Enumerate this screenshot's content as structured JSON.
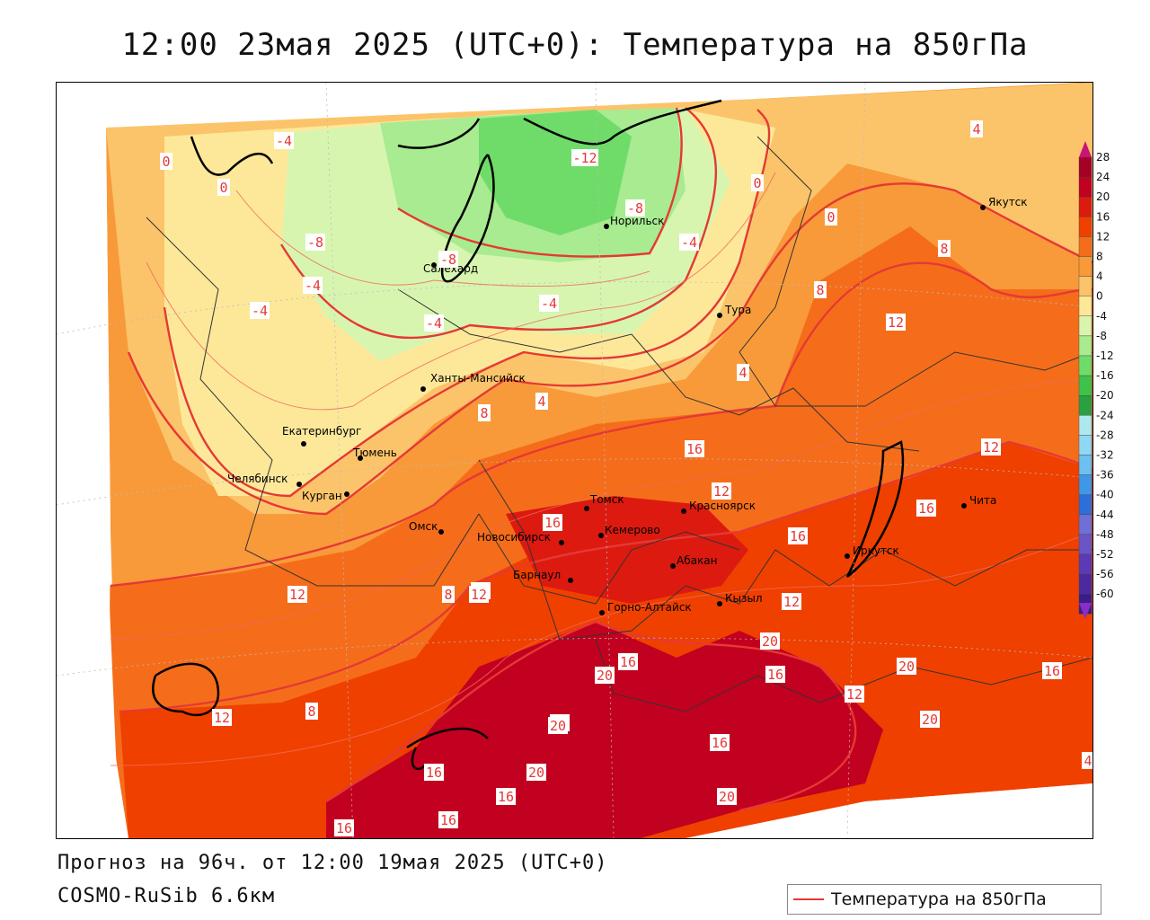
{
  "title": "12:00 23мая 2025 (UTC+0): Температура на 850гПа",
  "forecast_text": "Прогноз на 96ч. от 12:00 19мая 2025 (UTC+0)",
  "model_text": "COSMO-RuSib 6.6км",
  "legend": {
    "label": "Температура на 850гПа",
    "line_color": "#e53935"
  },
  "colorbar": {
    "levels": [
      "28",
      "24",
      "20",
      "16",
      "12",
      "8",
      "4",
      "0",
      "-4",
      "-8",
      "-12",
      "-16",
      "-20",
      "-24",
      "-28",
      "-32",
      "-36",
      "-40",
      "-44",
      "-48",
      "-52",
      "-56",
      "-60"
    ],
    "colors": [
      "#a50026",
      "#c2001f",
      "#dc1a10",
      "#ef4000",
      "#f56d1a",
      "#f89a3a",
      "#fbc46a",
      "#fde89a",
      "#d8f5b0",
      "#a8eb90",
      "#6fdc6a",
      "#3fc24a",
      "#2aa040",
      "#aee8ef",
      "#8fd8f5",
      "#6cc0f2",
      "#3e98ea",
      "#2d6fd8",
      "#6f6fd8",
      "#6a55c8",
      "#5a3ab5",
      "#4a2a9e",
      "#3a1c8a"
    ],
    "top_arrow_color": "#c8147a",
    "bottom_arrow_color": "#8a2cc8"
  },
  "cities": [
    {
      "name": "Салехард"
    },
    {
      "name": "Норильск"
    },
    {
      "name": "Якутск"
    },
    {
      "name": "Тура"
    },
    {
      "name": "Ханты-Мансийск"
    },
    {
      "name": "Екатеринбург"
    },
    {
      "name": "Тюмень"
    },
    {
      "name": "Челябинск"
    },
    {
      "name": "Курган"
    },
    {
      "name": "Омск"
    },
    {
      "name": "Томск"
    },
    {
      "name": "Новосибирск"
    },
    {
      "name": "Кемерово"
    },
    {
      "name": "Красноярск"
    },
    {
      "name": "Абакан"
    },
    {
      "name": "Барнаул"
    },
    {
      "name": "Горно-Алтайск"
    },
    {
      "name": "Кызыл"
    },
    {
      "name": "Иркутск"
    },
    {
      "name": "Чита"
    }
  ],
  "contour_labels": [
    "0",
    "-4",
    "0",
    "-8",
    "-4",
    "-4",
    "-8",
    "-4",
    "-12",
    "-8",
    "-4",
    "0",
    "0",
    "-4",
    "4",
    "4",
    "8",
    "8",
    "4",
    "8",
    "12",
    "12",
    "12",
    "16",
    "12",
    "16",
    "16",
    "12",
    "16",
    "12",
    "8",
    "8",
    "12",
    "16",
    "20",
    "16",
    "20",
    "20",
    "16",
    "12",
    "16",
    "20",
    "20",
    "20",
    "16",
    "20",
    "16",
    "12",
    "16",
    "16",
    "20",
    "4"
  ]
}
